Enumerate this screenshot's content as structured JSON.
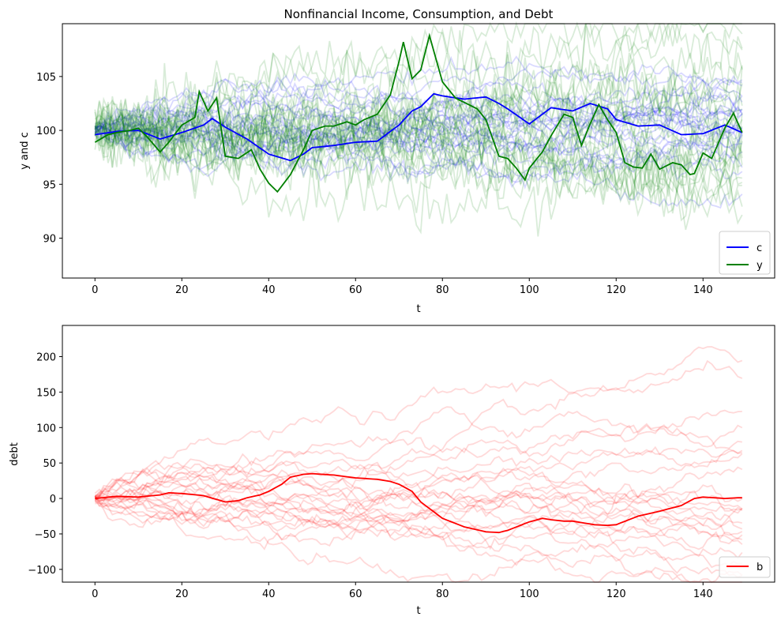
{
  "figure": {
    "background": "#ffffff"
  },
  "chart_data": [
    {
      "type": "line",
      "title": "Nonfinancial Income, Consumption, and Debt",
      "xlabel": "t",
      "ylabel": "y and c",
      "xlim": [
        -7.5,
        156.5
      ],
      "ylim": [
        86.3,
        109.9
      ],
      "xticks": [
        0,
        20,
        40,
        60,
        80,
        100,
        120,
        140
      ],
      "yticks": [
        90,
        95,
        100,
        105
      ],
      "grid": false,
      "legend_position": "lower-right",
      "faint_paths": {
        "description_note": "many translucent simulated paths for c (blue) and y (green), each with alpha 0.15",
        "c_paths": 25,
        "y_paths": 25,
        "c_color": "#0000ff",
        "y_color": "#008000",
        "alpha": 0.15
      },
      "series": [
        {
          "name": "c",
          "color": "#0000ff",
          "x": [
            0,
            5,
            10,
            15,
            20,
            25,
            27,
            30,
            35,
            40,
            45,
            48,
            50,
            55,
            60,
            65,
            70,
            73,
            75,
            78,
            80,
            85,
            90,
            93,
            95,
            100,
            105,
            110,
            114,
            118,
            120,
            125,
            130,
            135,
            140,
            145,
            149
          ],
          "values": [
            99.6,
            99.9,
            100.0,
            99.2,
            99.8,
            100.5,
            101.1,
            100.3,
            99.2,
            97.8,
            97.2,
            97.8,
            98.4,
            98.6,
            98.9,
            99.0,
            100.5,
            101.8,
            102.2,
            103.4,
            103.2,
            102.9,
            103.1,
            102.5,
            102.0,
            100.6,
            102.1,
            101.8,
            102.5,
            102.0,
            101.0,
            100.4,
            100.5,
            99.6,
            99.7,
            100.5,
            99.8
          ]
        },
        {
          "name": "y",
          "color": "#008000",
          "x": [
            0,
            3,
            5,
            8,
            10,
            12,
            15,
            17,
            20,
            23,
            24,
            26,
            28,
            30,
            33,
            36,
            38,
            40,
            42,
            45,
            48,
            50,
            53,
            55,
            58,
            60,
            62,
            65,
            68,
            70,
            71,
            73,
            75,
            77,
            80,
            83,
            85,
            88,
            90,
            93,
            95,
            97,
            99,
            100,
            103,
            105,
            108,
            110,
            112,
            114,
            116,
            118,
            120,
            122,
            124,
            126,
            128,
            130,
            133,
            135,
            137,
            138,
            140,
            142,
            145,
            147,
            149
          ],
          "values": [
            98.9,
            99.6,
            99.8,
            100.0,
            100.2,
            99.4,
            98.0,
            98.9,
            100.5,
            101.2,
            103.6,
            101.8,
            103.0,
            97.6,
            97.4,
            98.2,
            96.4,
            95.1,
            94.3,
            95.9,
            98.2,
            100.0,
            100.4,
            100.4,
            100.8,
            100.5,
            101.0,
            101.5,
            103.3,
            106.4,
            108.2,
            104.8,
            105.6,
            108.8,
            104.5,
            103.0,
            102.6,
            102.0,
            101.0,
            97.6,
            97.4,
            96.5,
            95.4,
            96.5,
            98.0,
            99.5,
            101.5,
            101.2,
            98.6,
            100.6,
            102.4,
            101.0,
            99.8,
            97.0,
            96.6,
            96.5,
            97.8,
            96.4,
            97.0,
            96.8,
            95.9,
            96.0,
            97.9,
            97.4,
            100.2,
            101.6,
            99.8
          ]
        }
      ]
    },
    {
      "type": "line",
      "title": "",
      "xlabel": "t",
      "ylabel": "debt",
      "xlim": [
        -7.5,
        156.5
      ],
      "ylim": [
        -118,
        244
      ],
      "xticks": [
        0,
        20,
        40,
        60,
        80,
        100,
        120,
        140
      ],
      "yticks": [
        -100,
        -50,
        0,
        50,
        100,
        150,
        200
      ],
      "grid": false,
      "legend_position": "lower-right",
      "faint_paths": {
        "b_paths": 25,
        "b_color": "#ff0000",
        "alpha": 0.15
      },
      "series": [
        {
          "name": "b",
          "color": "#ff0000",
          "x": [
            0,
            5,
            10,
            15,
            17,
            20,
            25,
            30,
            33,
            35,
            38,
            40,
            43,
            45,
            48,
            50,
            55,
            60,
            65,
            68,
            70,
            73,
            75,
            80,
            85,
            90,
            93,
            95,
            100,
            103,
            105,
            108,
            110,
            115,
            118,
            120,
            125,
            130,
            135,
            138,
            140,
            145,
            148,
            149
          ],
          "values": [
            0,
            3,
            2,
            5,
            8,
            7,
            4,
            -5,
            -3,
            1,
            5,
            10,
            20,
            30,
            34,
            35,
            33,
            29,
            27,
            24,
            20,
            10,
            -5,
            -28,
            -40,
            -47,
            -48,
            -45,
            -33,
            -28,
            -30,
            -32,
            -32,
            -37,
            -38,
            -37,
            -25,
            -18,
            -10,
            0,
            2,
            0,
            1,
            1
          ]
        }
      ]
    }
  ]
}
